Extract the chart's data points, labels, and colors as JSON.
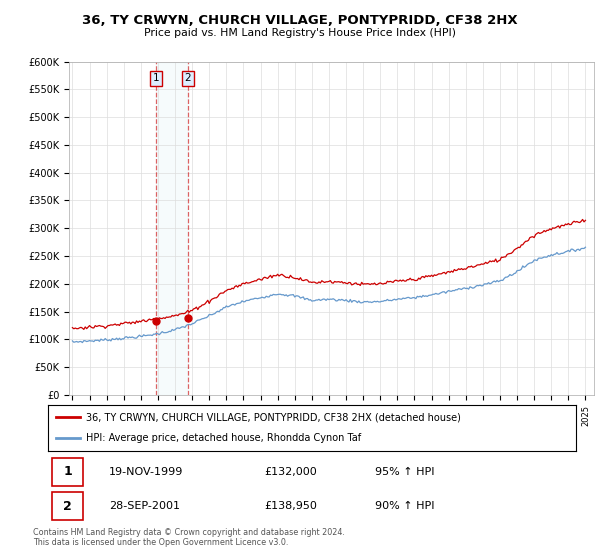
{
  "title": "36, TY CRWYN, CHURCH VILLAGE, PONTYPRIDD, CF38 2HX",
  "subtitle": "Price paid vs. HM Land Registry's House Price Index (HPI)",
  "legend_line1": "36, TY CRWYN, CHURCH VILLAGE, PONTYPRIDD, CF38 2HX (detached house)",
  "legend_line2": "HPI: Average price, detached house, Rhondda Cynon Taf",
  "table_rows": [
    {
      "num": "1",
      "date": "19-NOV-1999",
      "price": "£132,000",
      "hpi": "95% ↑ HPI"
    },
    {
      "num": "2",
      "date": "28-SEP-2001",
      "price": "£138,950",
      "hpi": "90% ↑ HPI"
    }
  ],
  "footer": "Contains HM Land Registry data © Crown copyright and database right 2024.\nThis data is licensed under the Open Government Licence v3.0.",
  "sale1_year": 1999.88,
  "sale1_price": 132000,
  "sale2_year": 2001.74,
  "sale2_price": 138950,
  "red_color": "#cc0000",
  "blue_color": "#6699cc",
  "hpi_years": [
    1995,
    1996,
    1997,
    1998,
    1999,
    2000,
    2001,
    2002,
    2003,
    2004,
    2005,
    2006,
    2007,
    2008,
    2009,
    2010,
    2011,
    2012,
    2013,
    2014,
    2015,
    2016,
    2017,
    2018,
    2019,
    2020,
    2021,
    2022,
    2023,
    2024,
    2025
  ],
  "hpi_values": [
    95000,
    97000,
    99000,
    102000,
    105000,
    110000,
    117000,
    128000,
    142000,
    158000,
    168000,
    175000,
    182000,
    178000,
    170000,
    172000,
    170000,
    167000,
    168000,
    172000,
    175000,
    180000,
    186000,
    192000,
    198000,
    205000,
    222000,
    242000,
    252000,
    258000,
    265000
  ],
  "red_ratio_pre": 1.2571,
  "red_ratio_post": 1.1883,
  "ylim_max": 600000,
  "background_color": "#ffffff",
  "grid_color": "#dddddd"
}
